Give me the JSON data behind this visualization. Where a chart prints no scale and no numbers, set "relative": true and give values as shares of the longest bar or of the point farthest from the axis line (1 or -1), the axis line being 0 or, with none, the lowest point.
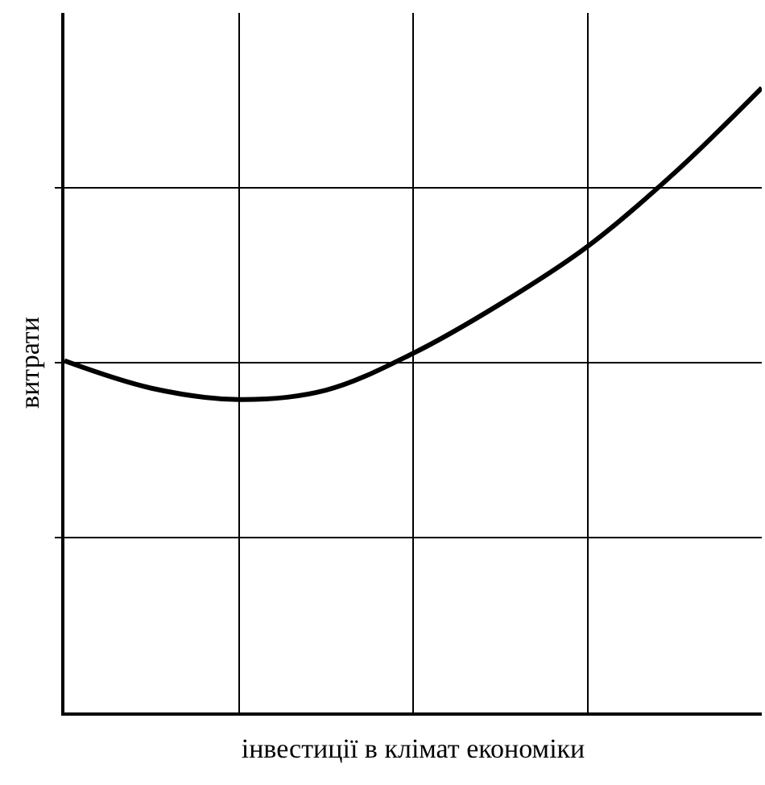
{
  "chart_data": {
    "type": "line",
    "relative": true,
    "xlabel": "інвестиції в клімат економіки",
    "ylabel": "витрати",
    "categories": [
      null,
      null,
      null,
      null,
      null,
      null,
      null,
      null,
      null
    ],
    "series": [
      {
        "color": "#000000",
        "values": [
          0.563,
          0.519,
          0.501,
          0.516,
          0.575,
          0.654,
          0.746,
          0.864,
          1.0
        ]
      }
    ],
    "grid": true,
    "tick_labels": false,
    "marker": "none",
    "line_style": "solid",
    "legend": false
  }
}
